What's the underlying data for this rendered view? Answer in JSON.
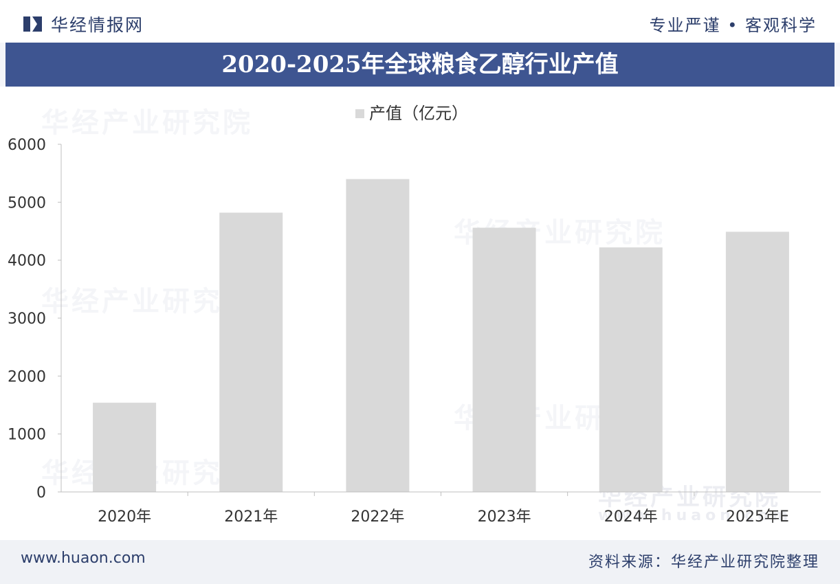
{
  "header": {
    "brand": "华经情报网",
    "slogan": "专业严谨 • 客观科学"
  },
  "title": "2020-2025年全球粮食乙醇行业产值",
  "footer": {
    "site": "www.huaon.com",
    "source": "资料来源：华经产业研究院整理"
  },
  "watermark": {
    "text": "华经产业研究院",
    "url": "www.huaon.com"
  },
  "colors": {
    "title_bar": "#3e5591",
    "bar": "#d9d9d9",
    "text_dark": "#2c3e6b"
  },
  "chart_data": {
    "type": "bar",
    "title": "2020-2025年全球粮食乙醇行业产值",
    "categories": [
      "2020年",
      "2021年",
      "2022年",
      "2023年",
      "2024年",
      "2025年E"
    ],
    "series": [
      {
        "name": "产值（亿元）",
        "values": [
          1540,
          4820,
          5400,
          4560,
          4220,
          4490
        ]
      }
    ],
    "ylim": [
      0,
      6000
    ],
    "yticks": [
      0,
      1000,
      2000,
      3000,
      4000,
      5000,
      6000
    ],
    "legend": "top-center",
    "grid": false
  }
}
